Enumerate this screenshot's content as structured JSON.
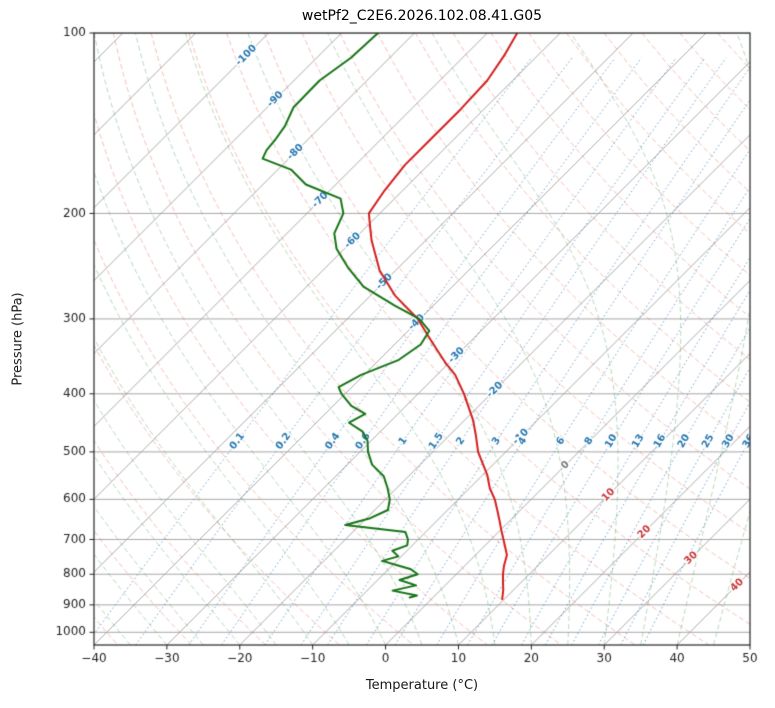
{
  "title": "wetPf2_C2E6.2026.102.08.41.G05",
  "axes": {
    "xlabel": "Temperature (°C)",
    "ylabel": "Pressure (hPa)",
    "x_min": -40,
    "x_max": 50,
    "p_top": 100,
    "p_bottom": 1050,
    "x_ticks": [
      -40,
      -30,
      -20,
      -10,
      0,
      10,
      20,
      30,
      40,
      50
    ],
    "x_tick_labels": [
      "−40",
      "−30",
      "−20",
      "−10",
      "0",
      "10",
      "20",
      "30",
      "40",
      "50"
    ],
    "y_ticks": [
      100,
      200,
      300,
      400,
      500,
      600,
      700,
      800,
      900,
      1000
    ],
    "y_tick_labels": [
      "100",
      "200",
      "300",
      "400",
      "500",
      "600",
      "700",
      "800",
      "900",
      "1000"
    ]
  },
  "chart_data": {
    "type": "line",
    "chart_kind": "skew-t log-p thermodynamic sounding",
    "title": "wetPf2_C2E6.2026.102.08.41.G05",
    "xlabel": "Temperature (°C)",
    "ylabel": "Pressure (hPa)",
    "x_range_c": [
      -40,
      50
    ],
    "pressure_range_hpa": [
      100,
      1050
    ],
    "skew_deg": 45,
    "grid": true,
    "legend": "none",
    "series": [
      {
        "name": "temperature",
        "color": "#d42020",
        "points_p_t": [
          [
            100,
            -65.9
          ],
          [
            109,
            -64.6
          ],
          [
            120,
            -63.5
          ],
          [
            134,
            -63.2
          ],
          [
            151,
            -63.2
          ],
          [
            166,
            -63.2
          ],
          [
            183,
            -62.5
          ],
          [
            200,
            -61.5
          ],
          [
            210,
            -59.6
          ],
          [
            222,
            -57.4
          ],
          [
            249,
            -52.2
          ],
          [
            274,
            -46.7
          ],
          [
            300,
            -40.3
          ],
          [
            320,
            -36.6
          ],
          [
            338,
            -33.4
          ],
          [
            355,
            -30.5
          ],
          [
            372,
            -27.5
          ],
          [
            400,
            -23.7
          ],
          [
            442,
            -18.9
          ],
          [
            470,
            -16.3
          ],
          [
            500,
            -13.8
          ],
          [
            546,
            -9.4
          ],
          [
            575,
            -7.2
          ],
          [
            600,
            -5.0
          ],
          [
            625,
            -3.2
          ],
          [
            650,
            -1.5
          ],
          [
            675,
            0.1
          ],
          [
            700,
            1.7
          ],
          [
            743,
            4.3
          ],
          [
            775,
            5.4
          ],
          [
            800,
            6.4
          ],
          [
            825,
            7.5
          ],
          [
            850,
            8.6
          ],
          [
            880,
            9.7
          ]
        ]
      },
      {
        "name": "dewpoint_wetbulb",
        "color": "#177517",
        "points_p_t": [
          [
            100,
            -85.0
          ],
          [
            110,
            -85.3
          ],
          [
            120,
            -86.5
          ],
          [
            133,
            -86.4
          ],
          [
            143,
            -85.0
          ],
          [
            150,
            -84.5
          ],
          [
            157,
            -84.2
          ],
          [
            162,
            -83.6
          ],
          [
            169,
            -78.2
          ],
          [
            179,
            -74.1
          ],
          [
            189,
            -67.4
          ],
          [
            200,
            -65.0
          ],
          [
            216,
            -63.5
          ],
          [
            229,
            -61.1
          ],
          [
            246,
            -57.0
          ],
          [
            265,
            -52.2
          ],
          [
            285,
            -45.3
          ],
          [
            300,
            -40.1
          ],
          [
            314,
            -37.1
          ],
          [
            331,
            -36.4
          ],
          [
            351,
            -37.3
          ],
          [
            372,
            -40.4
          ],
          [
            390,
            -41.8
          ],
          [
            400,
            -40.5
          ],
          [
            419,
            -37.5
          ],
          [
            432,
            -34.5
          ],
          [
            447,
            -35.5
          ],
          [
            462,
            -32.5
          ],
          [
            479,
            -30.5
          ],
          [
            500,
            -28.9
          ],
          [
            525,
            -26.6
          ],
          [
            549,
            -23.4
          ],
          [
            574,
            -21.3
          ],
          [
            600,
            -19.4
          ],
          [
            625,
            -18.2
          ],
          [
            645,
            -19.5
          ],
          [
            662,
            -22.0
          ],
          [
            680,
            -12.8
          ],
          [
            700,
            -11.4
          ],
          [
            716,
            -10.7
          ],
          [
            731,
            -12.0
          ],
          [
            747,
            -10.4
          ],
          [
            760,
            -12.0
          ],
          [
            772,
            -9.5
          ],
          [
            785,
            -6.9
          ],
          [
            800,
            -5.3
          ],
          [
            818,
            -7.0
          ],
          [
            835,
            -4.0
          ],
          [
            852,
            -6.5
          ],
          [
            868,
            -2.5
          ],
          [
            875,
            -3.2
          ]
        ]
      }
    ],
    "background": {
      "isotherms_c": {
        "min": -120,
        "max": 50,
        "step": 10
      },
      "dry_adiabats_theta_c": {
        "min": -40,
        "max": 190,
        "step": 10
      },
      "moist_adiabats_start_c": {
        "min": -40,
        "max": 50,
        "step": 5
      },
      "mixing_ratio_g_kg": [
        0.1,
        0.2,
        0.4,
        0.6,
        1,
        1.5,
        2,
        3,
        4,
        6,
        8,
        10,
        13,
        16,
        20,
        25,
        30,
        36
      ],
      "mixing_ratio_label_pressure_hpa": 480,
      "isotherm_labels": [
        {
          "t": -100,
          "p": 109
        },
        {
          "t": -90,
          "p": 129
        },
        {
          "t": -80,
          "p": 158
        },
        {
          "t": -70,
          "p": 190
        },
        {
          "t": -60,
          "p": 222
        },
        {
          "t": -50,
          "p": 260
        },
        {
          "t": -40,
          "p": 304
        },
        {
          "t": -30,
          "p": 345
        },
        {
          "t": -20,
          "p": 394
        },
        {
          "t": -10,
          "p": 472
        },
        {
          "t": 0,
          "p": 526
        },
        {
          "t": 10,
          "p": 590
        },
        {
          "t": 20,
          "p": 680
        },
        {
          "t": 30,
          "p": 752
        },
        {
          "t": 40,
          "p": 834
        }
      ]
    }
  },
  "style": {
    "grid_color": "#a8a8a8",
    "isotherm_color": "#a3a3a3",
    "dry_adiabat_color": "rgba(226,82,62,0.40)",
    "moist_adiabat_color": "rgba(52,146,64,0.38)",
    "mixing_ratio_color": "rgba(36,108,178,0.60)",
    "temperature_color": "#d42020",
    "dewpoint_color": "#177517",
    "label_blue": "#2878b0",
    "label_red": "#c83737",
    "label_gray": "#7a7a7a",
    "frame_color": "#262626",
    "tick_text_color": "#262626"
  }
}
